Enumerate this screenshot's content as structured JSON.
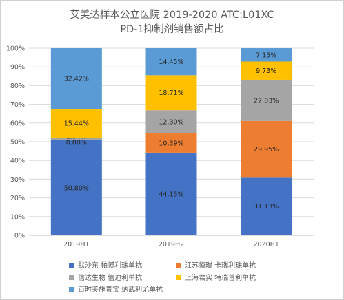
{
  "chart_data": {
    "type": "bar",
    "stacked": "percent",
    "title": [
      "艾美达样本公立医院 2019-2020 ATC:L01XC",
      "PD-1抑制剂销售额占比"
    ],
    "categories": [
      "2019H1",
      "2019H2",
      "2020H1"
    ],
    "ylim": [
      0,
      100
    ],
    "y_ticks": [
      "0%",
      "10%",
      "20%",
      "30%",
      "40%",
      "50%",
      "60%",
      "70%",
      "80%",
      "90%",
      "100%"
    ],
    "grid": true,
    "legend_position": "bottom",
    "series": [
      {
        "name": "默沙东 帕博利珠单抗",
        "color": "#4472c4",
        "values": [
          50.8,
          44.15,
          31.13
        ],
        "labels": [
          "50.80%",
          "44.15%",
          "31.13%"
        ]
      },
      {
        "name": "江苏恒瑞 卡瑞利珠单抗",
        "color": "#ed7d31",
        "values": [
          0.0,
          10.39,
          29.95
        ],
        "labels": [
          "0.00%",
          "10.39%",
          "29.95%"
        ]
      },
      {
        "name": "信达生物 信迪利单抗",
        "color": "#a5a5a5",
        "values": [
          1.34,
          12.3,
          22.03
        ],
        "labels": [
          "1.34%",
          "12.30%",
          "22.03%"
        ]
      },
      {
        "name": "上海君实 特瑞普利单抗",
        "color": "#ffc000",
        "values": [
          15.44,
          18.71,
          9.73
        ],
        "labels": [
          "15.44%",
          "18.71%",
          "9.73%"
        ]
      },
      {
        "name": "百时美施贵宝 纳武利尤单抗",
        "color": "#5b9bd5",
        "values": [
          32.42,
          14.45,
          7.15
        ],
        "labels": [
          "32.42%",
          "14.45%",
          "7.15%"
        ]
      }
    ]
  }
}
